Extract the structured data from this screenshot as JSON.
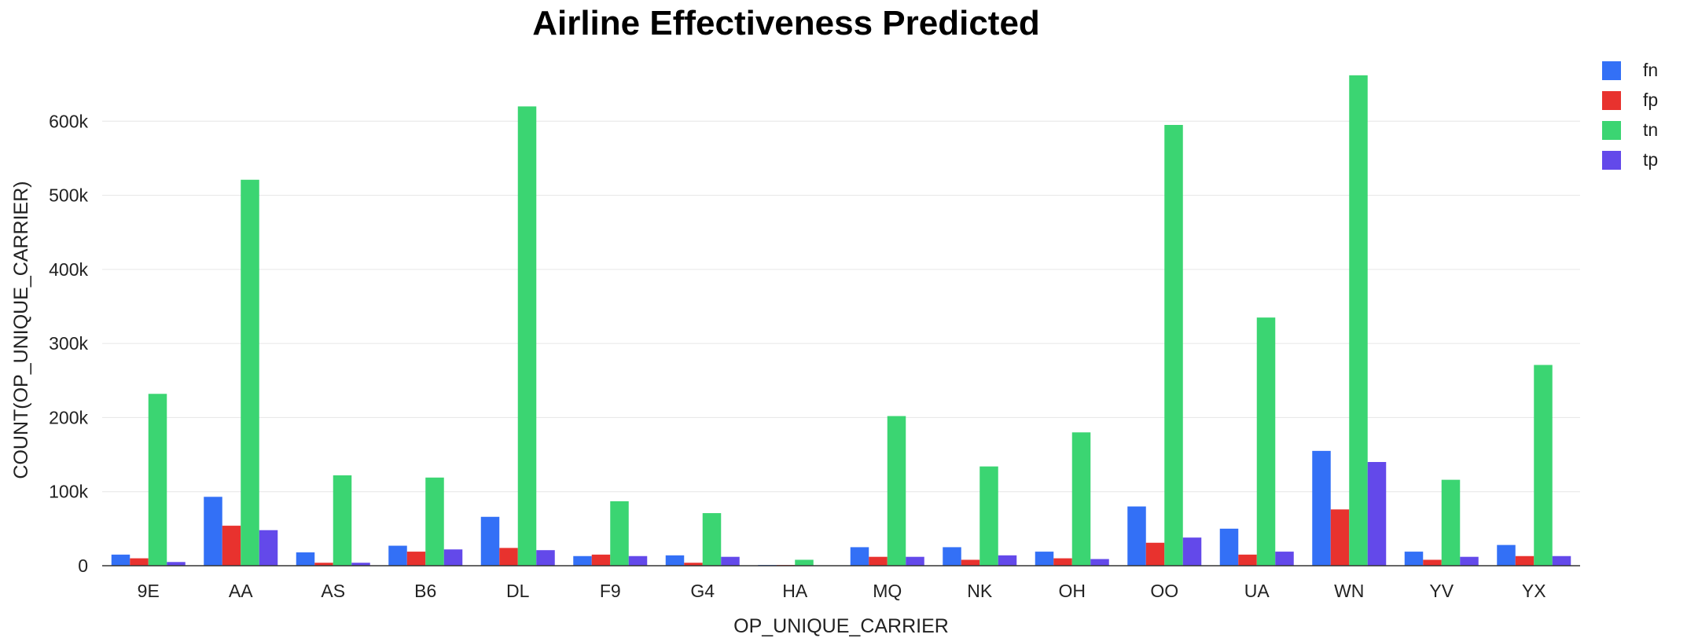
{
  "chart_data": {
    "type": "bar",
    "title": "Airline Effectiveness Predicted",
    "xlabel": "OP_UNIQUE_CARRIER",
    "ylabel": "COUNT(OP_UNIQUE_CARRIER)",
    "ylim": [
      0,
      700000
    ],
    "yticks": [
      0,
      100000,
      200000,
      300000,
      400000,
      500000,
      600000
    ],
    "ytick_labels": [
      "0",
      "100k",
      "200k",
      "300k",
      "400k",
      "500k",
      "600k"
    ],
    "grid": true,
    "legend_position": "top-right",
    "categories": [
      "9E",
      "AA",
      "AS",
      "B6",
      "DL",
      "F9",
      "G4",
      "HA",
      "MQ",
      "NK",
      "OH",
      "OO",
      "UA",
      "WN",
      "YV",
      "YX"
    ],
    "series": [
      {
        "name": "fn",
        "color": "#3370f6",
        "values": [
          15000,
          93000,
          18000,
          27000,
          66000,
          13000,
          14000,
          1000,
          25000,
          25000,
          19000,
          80000,
          50000,
          155000,
          19000,
          28000
        ]
      },
      {
        "name": "fp",
        "color": "#e8322e",
        "values": [
          10000,
          54000,
          4000,
          19000,
          24000,
          15000,
          4000,
          1000,
          12000,
          8000,
          10000,
          31000,
          15000,
          76000,
          8000,
          13000
        ]
      },
      {
        "name": "tn",
        "color": "#3bd572",
        "values": [
          232000,
          521000,
          122000,
          119000,
          620000,
          87000,
          71000,
          8000,
          202000,
          134000,
          180000,
          595000,
          335000,
          662000,
          116000,
          271000
        ]
      },
      {
        "name": "tp",
        "color": "#6349ea",
        "values": [
          5000,
          48000,
          4000,
          22000,
          21000,
          13000,
          12000,
          0,
          12000,
          14000,
          9000,
          38000,
          19000,
          140000,
          12000,
          13000
        ]
      }
    ]
  }
}
